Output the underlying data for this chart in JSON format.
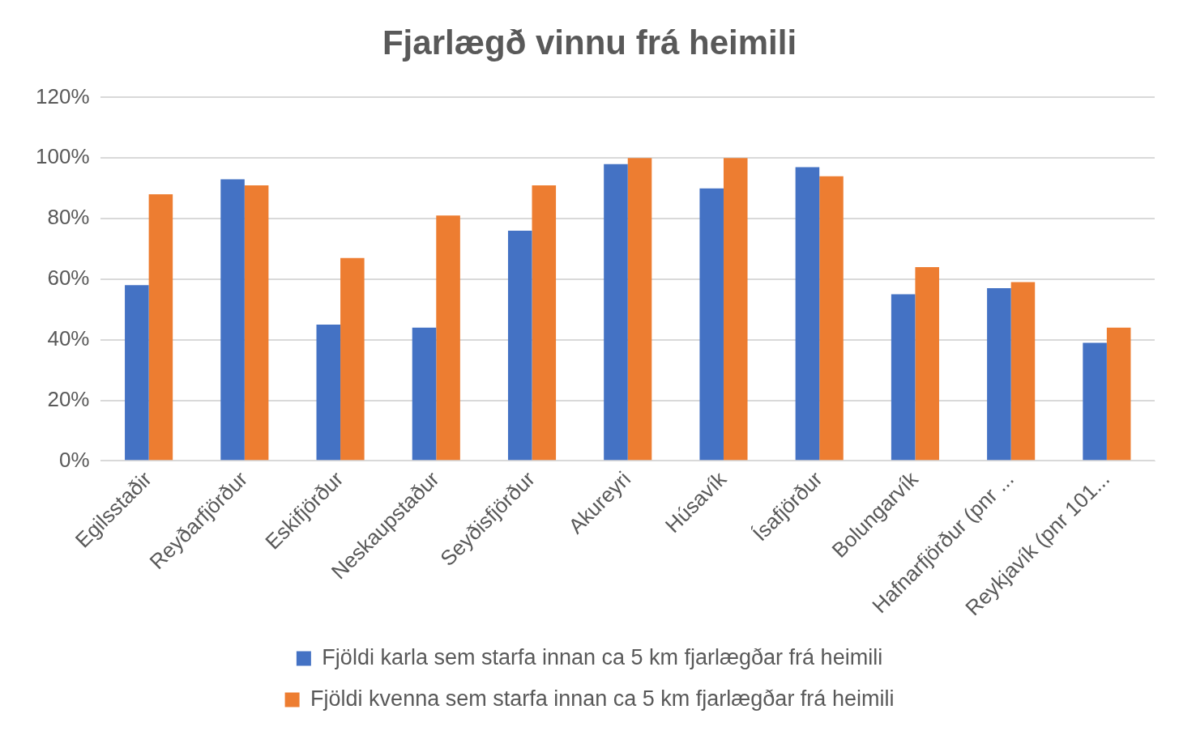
{
  "chart_data": {
    "type": "bar",
    "title": "Fjarlægð vinnu frá heimili",
    "categories": [
      "Egilsstaðir",
      "Reyðarfjörður",
      "Eskifjörður",
      "Neskaupstaður",
      "Seyðisfjörður",
      "Akureyri",
      "Húsavík",
      "Ísafjörður",
      "Bolungarvík",
      "Hafnarfjörður (pnr ...",
      "Reykjavík (pnr 101..."
    ],
    "series": [
      {
        "name": "Fjöldi karla sem starfa innan ca 5 km fjarlægðar frá heimili",
        "color": "#4472c4",
        "values": [
          58,
          93,
          45,
          44,
          76,
          98,
          90,
          97,
          55,
          57,
          39
        ]
      },
      {
        "name": "Fjöldi kvenna sem starfa innan ca 5 km fjarlægðar frá heimili",
        "color": "#ed7d31",
        "values": [
          88,
          91,
          67,
          81,
          91,
          100,
          100,
          94,
          64,
          59,
          44
        ]
      }
    ],
    "ylim": [
      0,
      120
    ],
    "yticks": [
      {
        "value": 0,
        "label": "0%"
      },
      {
        "value": 20,
        "label": "20%"
      },
      {
        "value": 40,
        "label": "40%"
      },
      {
        "value": 60,
        "label": "60%"
      },
      {
        "value": 80,
        "label": "80%"
      },
      {
        "value": 100,
        "label": "100%"
      },
      {
        "value": 120,
        "label": "120%"
      }
    ],
    "grid": "y",
    "legend": "bottom"
  }
}
